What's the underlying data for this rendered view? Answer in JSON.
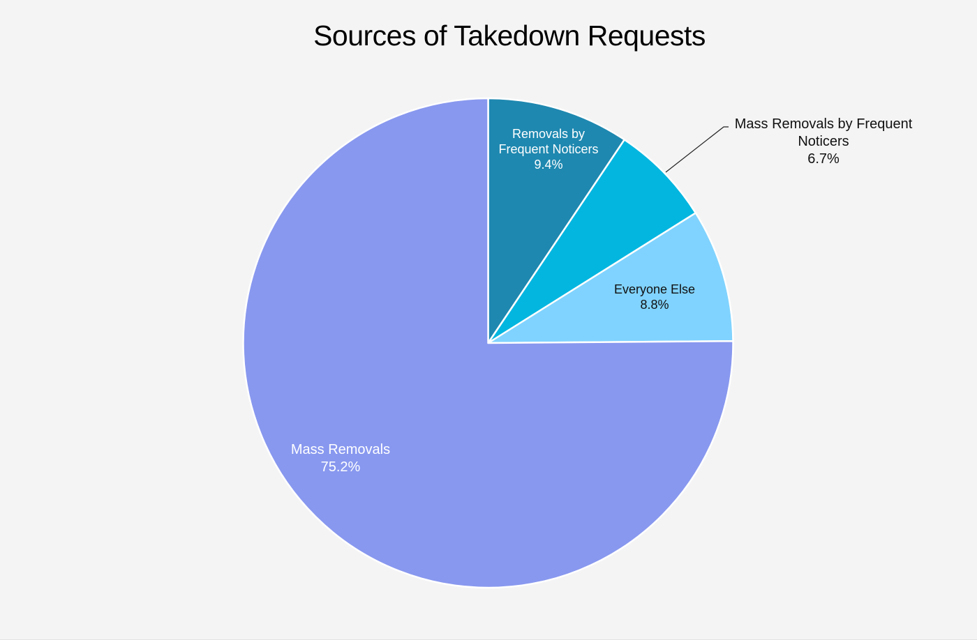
{
  "chart_data": {
    "type": "pie",
    "title": "Sources of Takedown Requests",
    "start_angle_deg": 0,
    "direction": "clockwise",
    "slices": [
      {
        "label": "Removals by Frequent Noticers",
        "value": 9.4,
        "display": "9.4%",
        "color": "#1e88b0",
        "label_position": "inside"
      },
      {
        "label": "Mass Removals by Frequent Noticers",
        "value": 6.7,
        "display": "6.7%",
        "color": "#03b6e0",
        "label_position": "outside"
      },
      {
        "label": "Everyone Else",
        "value": 8.8,
        "display": "8.8%",
        "color": "#80d3fe",
        "label_position": "inside"
      },
      {
        "label": "Mass Removals",
        "value": 75.2,
        "display": "75.2%",
        "color": "#8898ef",
        "label_position": "inside"
      }
    ],
    "legend": "none"
  },
  "labels": {
    "s1_line1": "Removals by",
    "s1_line2": "Frequent Noticers",
    "s1_pct": "9.4%",
    "s2_line1": "Mass Removals by Frequent",
    "s2_line2": "Noticers",
    "s2_pct": "6.7%",
    "s3_line1": "Everyone Else",
    "s3_pct": "8.8%",
    "s4_line1": "Mass Removals",
    "s4_pct": "75.2%"
  },
  "colors": {
    "background": "#f4f4f4",
    "slice_border": "#ffffff"
  }
}
